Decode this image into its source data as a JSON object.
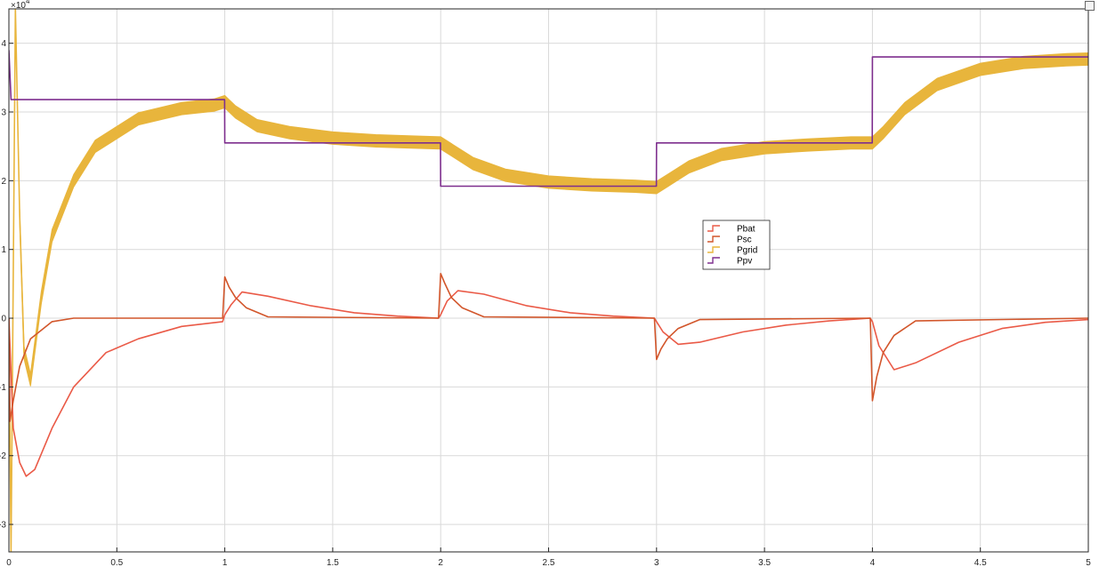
{
  "chart_data": {
    "type": "line",
    "title": "",
    "xlabel": "",
    "ylabel": "",
    "xlim": [
      0,
      5
    ],
    "ylim": [
      -3.4,
      4.5
    ],
    "y_exponent_label": "×10",
    "y_exponent_power": "4",
    "grid": true,
    "legend_position": "center-right",
    "x_ticks": [
      "0",
      "0.5",
      "1",
      "1.5",
      "2",
      "2.5",
      "3",
      "3.5",
      "4",
      "4.5",
      "5"
    ],
    "y_ticks": [
      "-3",
      "-2",
      "-1",
      "0",
      "1",
      "2",
      "3",
      "4"
    ],
    "x_tick_values": [
      0,
      0.5,
      1,
      1.5,
      2,
      2.5,
      3,
      3.5,
      4,
      4.5,
      5
    ],
    "y_tick_values": [
      -3,
      -2,
      -1,
      0,
      1,
      2,
      3,
      4
    ],
    "series": [
      {
        "name": "Pbat",
        "color": "#ea5a47",
        "x": [
          0,
          0.02,
          0.05,
          0.08,
          0.12,
          0.2,
          0.3,
          0.45,
          0.6,
          0.8,
          0.99,
          1.0,
          1.03,
          1.08,
          1.2,
          1.4,
          1.6,
          1.8,
          1.99,
          2.0,
          2.03,
          2.08,
          2.2,
          2.4,
          2.6,
          2.8,
          2.99,
          3.0,
          3.03,
          3.1,
          3.2,
          3.4,
          3.6,
          3.8,
          3.99,
          4.0,
          4.03,
          4.1,
          4.2,
          4.4,
          4.6,
          4.8,
          5.0
        ],
        "values": [
          0,
          -1.6,
          -2.1,
          -2.3,
          -2.2,
          -1.6,
          -1.0,
          -0.5,
          -0.3,
          -0.12,
          -0.05,
          0.05,
          0.2,
          0.38,
          0.32,
          0.18,
          0.08,
          0.03,
          0.0,
          0.05,
          0.25,
          0.4,
          0.35,
          0.18,
          0.08,
          0.03,
          0.0,
          -0.05,
          -0.2,
          -0.38,
          -0.35,
          -0.2,
          -0.1,
          -0.04,
          0.0,
          -0.05,
          -0.4,
          -0.75,
          -0.65,
          -0.35,
          -0.15,
          -0.06,
          -0.02
        ]
      },
      {
        "name": "Psc",
        "color": "#d2562b",
        "x": [
          0,
          0.005,
          0.02,
          0.05,
          0.1,
          0.2,
          0.3,
          0.99,
          1.0,
          1.02,
          1.05,
          1.1,
          1.2,
          1.99,
          2.0,
          2.02,
          2.05,
          2.1,
          2.2,
          2.99,
          3.0,
          3.02,
          3.05,
          3.1,
          3.2,
          3.99,
          4.0,
          4.02,
          4.05,
          4.1,
          4.2,
          5.0
        ],
        "values": [
          0,
          -1.5,
          -1.2,
          -0.7,
          -0.3,
          -0.05,
          0.0,
          0.0,
          0.6,
          0.45,
          0.3,
          0.15,
          0.02,
          0.0,
          0.65,
          0.5,
          0.3,
          0.15,
          0.02,
          0.0,
          -0.6,
          -0.45,
          -0.3,
          -0.15,
          -0.02,
          0.0,
          -1.2,
          -0.85,
          -0.5,
          -0.25,
          -0.04,
          0.0
        ]
      },
      {
        "name": "Pgrid",
        "color": "#e8b53c",
        "x": [
          0,
          0.01,
          0.03,
          0.05,
          0.07,
          0.1,
          0.15,
          0.2,
          0.3,
          0.4,
          0.6,
          0.8,
          0.95,
          1.0,
          1.05,
          1.15,
          1.3,
          1.5,
          1.7,
          1.9,
          2.0,
          2.05,
          2.15,
          2.3,
          2.5,
          2.7,
          2.9,
          3.0,
          3.05,
          3.15,
          3.3,
          3.5,
          3.7,
          3.9,
          4.0,
          4.05,
          4.15,
          4.3,
          4.5,
          4.7,
          4.9,
          5.0
        ],
        "values": [
          0,
          -3.4,
          4.5,
          1.5,
          -0.5,
          -0.9,
          0.3,
          1.2,
          2.0,
          2.5,
          2.9,
          3.05,
          3.1,
          3.15,
          3.0,
          2.8,
          2.7,
          2.62,
          2.58,
          2.56,
          2.55,
          2.45,
          2.25,
          2.08,
          1.98,
          1.94,
          1.92,
          1.9,
          2.0,
          2.2,
          2.38,
          2.48,
          2.52,
          2.55,
          2.55,
          2.7,
          3.05,
          3.4,
          3.62,
          3.72,
          3.76,
          3.77
        ],
        "band_halfwidth": 0.09
      },
      {
        "name": "Ppv",
        "color": "#7e2f8e",
        "x": [
          0,
          0.01,
          0.999,
          1.0,
          1.999,
          2.0,
          2.999,
          3.0,
          3.999,
          4.0,
          5.0
        ],
        "values": [
          3.9,
          3.18,
          3.18,
          2.55,
          2.55,
          1.92,
          1.92,
          2.55,
          2.55,
          3.8,
          3.8
        ]
      }
    ]
  }
}
